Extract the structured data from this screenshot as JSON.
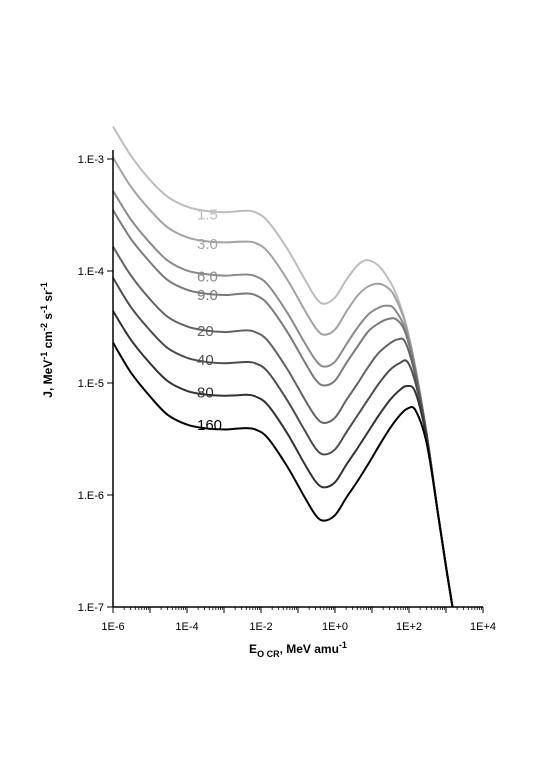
{
  "chart_data": {
    "type": "line",
    "xscale": "log",
    "yscale": "log",
    "xlim": [
      1e-06,
      10000
    ],
    "ylim": [
      1e-07,
      0.002
    ],
    "xlabel": {
      "main": "E",
      "sub": "O CR",
      "rest": ", MeV amu",
      "sup": "-1"
    },
    "ylabel": {
      "parts": [
        {
          "t": "J, MeV",
          "sup": false
        },
        {
          "t": "-1",
          "sup": true
        },
        {
          "t": " cm",
          "sup": false
        },
        {
          "t": "-2",
          "sup": true
        },
        {
          "t": " s",
          "sup": false
        },
        {
          "t": "-1",
          "sup": true
        },
        {
          "t": " sr",
          "sup": false
        },
        {
          "t": "-1",
          "sup": true
        }
      ]
    },
    "xticks": [
      {
        "v": 1e-06,
        "label": "1E-6"
      },
      {
        "v": 0.0001,
        "label": "1E-4"
      },
      {
        "v": 0.01,
        "label": "1E-2"
      },
      {
        "v": 1,
        "label": "1E+0"
      },
      {
        "v": 100,
        "label": "1E+2"
      },
      {
        "v": 10000,
        "label": "1E+4"
      }
    ],
    "yticks": [
      {
        "v": 1e-07,
        "label": "1.E-7"
      },
      {
        "v": 1e-06,
        "label": "1.E-6"
      },
      {
        "v": 1e-05,
        "label": "1.E-5"
      },
      {
        "v": 0.0001,
        "label": "1.E-4"
      },
      {
        "v": 0.001,
        "label": "1.E-3"
      }
    ],
    "series": [
      {
        "name": "1.5",
        "color": "#bdbdbd",
        "label_at": [
          0.0001,
          0.00032
        ],
        "points": [
          [
            1e-06,
            0.00195
          ],
          [
            3e-06,
            0.00108
          ],
          [
            1e-05,
            0.00065
          ],
          [
            3e-05,
            0.00046
          ],
          [
            0.0001,
            0.000375
          ],
          [
            0.0003,
            0.000345
          ],
          [
            0.001,
            0.000335
          ],
          [
            0.002,
            0.00034
          ],
          [
            0.004,
            0.000345
          ],
          [
            0.007,
            0.000335
          ],
          [
            0.015,
            0.00028
          ],
          [
            0.05,
            0.00016
          ],
          [
            0.15,
            8.5e-05
          ],
          [
            0.3,
            5.8e-05
          ],
          [
            0.5,
            5.1e-05
          ],
          [
            1,
            5.8e-05
          ],
          [
            2,
            8.3e-05
          ],
          [
            4,
            0.000112
          ],
          [
            7,
            0.000125
          ],
          [
            12,
            0.000118
          ],
          [
            20,
            0.0001
          ],
          [
            40,
            6.8e-05
          ],
          [
            80,
            3.5e-05
          ],
          [
            150,
            1.35e-05
          ],
          [
            300,
            3.5e-06
          ],
          [
            600,
            7e-07
          ],
          [
            1000,
            2.3e-07
          ],
          [
            1500,
            1e-07
          ]
        ]
      },
      {
        "name": "3.0",
        "color": "#a3a3a3",
        "label_at": [
          0.0001,
          0.000175
        ],
        "points": [
          [
            1e-06,
            0.00103
          ],
          [
            3e-06,
            0.00057
          ],
          [
            1e-05,
            0.00035
          ],
          [
            3e-05,
            0.000245
          ],
          [
            0.0001,
            0.0002
          ],
          [
            0.0003,
            0.000185
          ],
          [
            0.001,
            0.00018
          ],
          [
            0.002,
            0.000182
          ],
          [
            0.004,
            0.000183
          ],
          [
            0.007,
            0.000178
          ],
          [
            0.015,
            0.00015
          ],
          [
            0.05,
            8.5e-05
          ],
          [
            0.15,
            4.5e-05
          ],
          [
            0.3,
            3.1e-05
          ],
          [
            0.5,
            2.7e-05
          ],
          [
            1,
            3e-05
          ],
          [
            2,
            4.3e-05
          ],
          [
            4,
            6e-05
          ],
          [
            8,
            7.3e-05
          ],
          [
            15,
            7.7e-05
          ],
          [
            25,
            7.2e-05
          ],
          [
            40,
            6e-05
          ],
          [
            80,
            3.4e-05
          ],
          [
            150,
            1.35e-05
          ],
          [
            300,
            3.5e-06
          ],
          [
            600,
            7e-07
          ],
          [
            1000,
            2.3e-07
          ],
          [
            1500,
            1e-07
          ]
        ]
      },
      {
        "name": "6.0",
        "color": "#8a8a8a",
        "label_at": [
          0.0001,
          8.9e-05
        ],
        "points": [
          [
            1e-06,
            0.00052
          ],
          [
            3e-06,
            0.00029
          ],
          [
            1e-05,
            0.000178
          ],
          [
            3e-05,
            0.000124
          ],
          [
            0.0001,
            0.000101
          ],
          [
            0.0003,
            9.4e-05
          ],
          [
            0.001,
            9.1e-05
          ],
          [
            0.002,
            9.2e-05
          ],
          [
            0.004,
            9.3e-05
          ],
          [
            0.007,
            9e-05
          ],
          [
            0.015,
            7.6e-05
          ],
          [
            0.05,
            4.3e-05
          ],
          [
            0.15,
            2.3e-05
          ],
          [
            0.3,
            1.6e-05
          ],
          [
            0.5,
            1.4e-05
          ],
          [
            1,
            1.55e-05
          ],
          [
            2,
            2.2e-05
          ],
          [
            4,
            3.1e-05
          ],
          [
            8,
            4.1e-05
          ],
          [
            15,
            4.7e-05
          ],
          [
            25,
            4.9e-05
          ],
          [
            40,
            4.6e-05
          ],
          [
            80,
            3e-05
          ],
          [
            150,
            1.3e-05
          ],
          [
            300,
            3.5e-06
          ],
          [
            600,
            7e-07
          ],
          [
            1000,
            2.3e-07
          ],
          [
            1500,
            1e-07
          ]
        ]
      },
      {
        "name": "9.0",
        "color": "#7a7a7a",
        "label_at": [
          0.0001,
          6.1e-05
        ],
        "points": [
          [
            1e-06,
            0.00035
          ],
          [
            3e-06,
            0.000195
          ],
          [
            1e-05,
            0.00012
          ],
          [
            3e-05,
            8.3e-05
          ],
          [
            0.0001,
            6.8e-05
          ],
          [
            0.0003,
            6.3e-05
          ],
          [
            0.001,
            6.1e-05
          ],
          [
            0.002,
            6.2e-05
          ],
          [
            0.004,
            6.3e-05
          ],
          [
            0.007,
            6.1e-05
          ],
          [
            0.015,
            5.1e-05
          ],
          [
            0.05,
            2.9e-05
          ],
          [
            0.15,
            1.55e-05
          ],
          [
            0.3,
            1.07e-05
          ],
          [
            0.5,
            9.5e-06
          ],
          [
            1,
            1.05e-05
          ],
          [
            2,
            1.5e-05
          ],
          [
            4,
            2.1e-05
          ],
          [
            8,
            2.9e-05
          ],
          [
            15,
            3.4e-05
          ],
          [
            25,
            3.7e-05
          ],
          [
            45,
            3.7e-05
          ],
          [
            80,
            2.8e-05
          ],
          [
            150,
            1.25e-05
          ],
          [
            300,
            3.5e-06
          ],
          [
            600,
            7e-07
          ],
          [
            1000,
            2.3e-07
          ],
          [
            1500,
            1e-07
          ]
        ]
      },
      {
        "name": "20",
        "color": "#636363",
        "label_at": [
          0.0001,
          2.9e-05
        ],
        "points": [
          [
            1e-06,
            0.000165
          ],
          [
            3e-06,
            9.2e-05
          ],
          [
            1e-05,
            5.6e-05
          ],
          [
            3e-05,
            3.9e-05
          ],
          [
            0.0001,
            3.2e-05
          ],
          [
            0.0003,
            2.95e-05
          ],
          [
            0.001,
            2.85e-05
          ],
          [
            0.002,
            2.9e-05
          ],
          [
            0.004,
            2.95e-05
          ],
          [
            0.007,
            2.85e-05
          ],
          [
            0.015,
            2.4e-05
          ],
          [
            0.05,
            1.35e-05
          ],
          [
            0.15,
            7.2e-06
          ],
          [
            0.3,
            5e-06
          ],
          [
            0.5,
            4.4e-06
          ],
          [
            1,
            4.9e-06
          ],
          [
            2,
            7e-06
          ],
          [
            4,
            9.8e-06
          ],
          [
            8,
            1.4e-05
          ],
          [
            15,
            1.85e-05
          ],
          [
            30,
            2.25e-05
          ],
          [
            50,
            2.45e-05
          ],
          [
            80,
            2.3e-05
          ],
          [
            150,
            1.15e-05
          ],
          [
            300,
            3.5e-06
          ],
          [
            600,
            7e-07
          ],
          [
            1000,
            2.3e-07
          ],
          [
            1500,
            1e-07
          ]
        ]
      },
      {
        "name": "40",
        "color": "#4d4d4d",
        "label_at": [
          0.0001,
          1.6e-05
        ],
        "points": [
          [
            1e-06,
            8.7e-05
          ],
          [
            3e-06,
            4.8e-05
          ],
          [
            1e-05,
            2.95e-05
          ],
          [
            3e-05,
            2.05e-05
          ],
          [
            0.0001,
            1.68e-05
          ],
          [
            0.0003,
            1.55e-05
          ],
          [
            0.001,
            1.5e-05
          ],
          [
            0.002,
            1.52e-05
          ],
          [
            0.004,
            1.54e-05
          ],
          [
            0.007,
            1.5e-05
          ],
          [
            0.015,
            1.27e-05
          ],
          [
            0.05,
            7.1e-06
          ],
          [
            0.15,
            3.8e-06
          ],
          [
            0.3,
            2.6e-06
          ],
          [
            0.5,
            2.3e-06
          ],
          [
            1,
            2.55e-06
          ],
          [
            2,
            3.6e-06
          ],
          [
            4,
            5.1e-06
          ],
          [
            8,
            7.2e-06
          ],
          [
            15,
            9.8e-06
          ],
          [
            30,
            1.3e-05
          ],
          [
            55,
            1.5e-05
          ],
          [
            90,
            1.55e-05
          ],
          [
            150,
            1e-05
          ],
          [
            300,
            3.4e-06
          ],
          [
            600,
            7e-07
          ],
          [
            1000,
            2.3e-07
          ],
          [
            1500,
            1e-07
          ]
        ]
      },
      {
        "name": "80",
        "color": "#333333",
        "label_at": [
          0.0001,
          8.2e-06
        ],
        "points": [
          [
            1e-06,
            4.4e-05
          ],
          [
            3e-06,
            2.45e-05
          ],
          [
            1e-05,
            1.5e-05
          ],
          [
            3e-05,
            1.04e-05
          ],
          [
            0.0001,
            8.5e-06
          ],
          [
            0.0003,
            7.9e-06
          ],
          [
            0.001,
            7.7e-06
          ],
          [
            0.002,
            7.75e-06
          ],
          [
            0.004,
            7.85e-06
          ],
          [
            0.007,
            7.6e-06
          ],
          [
            0.015,
            6.4e-06
          ],
          [
            0.05,
            3.6e-06
          ],
          [
            0.15,
            1.9e-06
          ],
          [
            0.3,
            1.32e-06
          ],
          [
            0.5,
            1.17e-06
          ],
          [
            1,
            1.3e-06
          ],
          [
            2,
            1.85e-06
          ],
          [
            4,
            2.6e-06
          ],
          [
            8,
            3.7e-06
          ],
          [
            15,
            5.1e-06
          ],
          [
            30,
            7e-06
          ],
          [
            55,
            8.6e-06
          ],
          [
            90,
            9.4e-06
          ],
          [
            150,
            8.2e-06
          ],
          [
            300,
            3.2e-06
          ],
          [
            600,
            7e-07
          ],
          [
            1000,
            2.3e-07
          ],
          [
            1500,
            1e-07
          ]
        ]
      },
      {
        "name": "160",
        "color": "#000000",
        "label_at": [
          0.0001,
          4.2e-06
        ],
        "points": [
          [
            1e-06,
            2.3e-05
          ],
          [
            3e-06,
            1.25e-05
          ],
          [
            1e-05,
            7.6e-06
          ],
          [
            3e-05,
            5.2e-06
          ],
          [
            0.0001,
            4.25e-06
          ],
          [
            0.0003,
            3.95e-06
          ],
          [
            0.001,
            3.85e-06
          ],
          [
            0.002,
            3.9e-06
          ],
          [
            0.004,
            3.95e-06
          ],
          [
            0.007,
            3.85e-06
          ],
          [
            0.015,
            3.25e-06
          ],
          [
            0.05,
            1.82e-06
          ],
          [
            0.15,
            9.6e-07
          ],
          [
            0.3,
            6.6e-07
          ],
          [
            0.5,
            5.9e-07
          ],
          [
            1,
            6.6e-07
          ],
          [
            2,
            9.4e-07
          ],
          [
            4,
            1.32e-06
          ],
          [
            8,
            1.9e-06
          ],
          [
            15,
            2.7e-06
          ],
          [
            30,
            3.9e-06
          ],
          [
            55,
            5.1e-06
          ],
          [
            90,
            5.9e-06
          ],
          [
            150,
            5.7e-06
          ],
          [
            300,
            2.9e-06
          ],
          [
            600,
            7e-07
          ],
          [
            1000,
            2.3e-07
          ],
          [
            1500,
            1e-07
          ]
        ]
      }
    ]
  }
}
